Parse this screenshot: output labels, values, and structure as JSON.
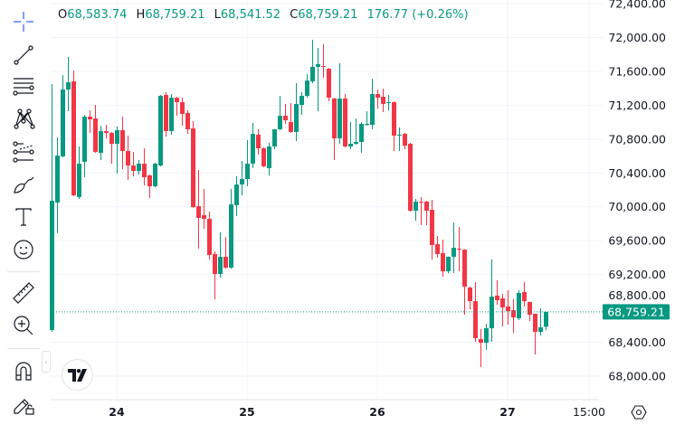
{
  "legend": {
    "open_label": "O",
    "open": "68,583.74",
    "high_label": "H",
    "high": "68,759.21",
    "low_label": "L",
    "low": "68,541.52",
    "close_label": "C",
    "close": "68,759.21",
    "change": "176.77 (+0.26%)"
  },
  "toolbar": {
    "tools": [
      "crosshair-icon",
      "trend-line-icon",
      "fib-retracement-icon",
      "xabcd-pattern-icon",
      "forecast-icon",
      "brush-icon",
      "text-icon",
      "emoji-icon",
      "ruler-icon",
      "zoom-in-icon",
      "magnet-icon",
      "lock-drawings-icon"
    ]
  },
  "time_axis": {
    "labels": [
      {
        "label": "24",
        "t": "24 00"
      },
      {
        "label": "25",
        "t": "25 00"
      },
      {
        "label": "26",
        "t": "26 00"
      },
      {
        "label": "27",
        "t": "27 00"
      },
      {
        "label": "15:00",
        "t": "27 15"
      }
    ]
  },
  "settings_icon": "gear-icon",
  "colors": {
    "up": "#089981",
    "down": "#F23645",
    "grid": "#f0f3fa",
    "text": "#131722"
  },
  "chart_data": {
    "type": "candlestick",
    "title": "",
    "xlabel": "",
    "ylabel": "",
    "ylim": [
      68000,
      72400
    ],
    "y_ticks": [
      "72,400.00",
      "72,000.00",
      "71,600.00",
      "71,200.00",
      "70,800.00",
      "70,400.00",
      "70,000.00",
      "69,600.00",
      "69,200.00",
      "68,800.00",
      "68,400.00",
      "68,000.00"
    ],
    "y_tick_values": [
      72400,
      72000,
      71600,
      71200,
      70800,
      70400,
      70000,
      69600,
      69200,
      68800,
      68400,
      68000
    ],
    "grid": true,
    "last_price": 68759.21,
    "last_price_label": "68,759.21",
    "columns": [
      "t",
      "open",
      "high",
      "low",
      "close"
    ],
    "candles": [
      [
        "23 12",
        68545,
        71450,
        68523,
        70072
      ],
      [
        "23 13",
        70050,
        70820,
        69690,
        70605
      ],
      [
        "23 14",
        70595,
        71556,
        70585,
        71386
      ],
      [
        "23 15",
        71386,
        71770,
        71129,
        71471
      ],
      [
        "23 16",
        71482,
        71610,
        70125,
        70136
      ],
      [
        "23 17",
        70115,
        70713,
        70093,
        70510
      ],
      [
        "23 18",
        70531,
        71087,
        70350,
        71065
      ],
      [
        "23 19",
        71065,
        71140,
        70873,
        71033
      ],
      [
        "23 20",
        71044,
        71204,
        70638,
        70649
      ],
      [
        "23 21",
        70638,
        70958,
        70553,
        70894
      ],
      [
        "23 22",
        70894,
        70969,
        70809,
        70873
      ],
      [
        "23 23",
        70873,
        70884,
        70510,
        70745
      ],
      [
        "24 00",
        70745,
        70948,
        70392,
        70905
      ],
      [
        "24 01",
        70905,
        71065,
        70446,
        70659
      ],
      [
        "24 02",
        70659,
        70841,
        70318,
        70488
      ],
      [
        "24 03",
        70488,
        70649,
        70360,
        70424
      ],
      [
        "24 04",
        70424,
        70553,
        70382,
        70510
      ],
      [
        "24 05",
        70510,
        70691,
        70253,
        70350
      ],
      [
        "24 06",
        70371,
        70382,
        70104,
        70243
      ],
      [
        "24 07",
        70243,
        70520,
        70230,
        70510
      ],
      [
        "24 08",
        70488,
        71321,
        70478,
        71311
      ],
      [
        "24 09",
        71321,
        71354,
        70830,
        70894
      ],
      [
        "24 10",
        70894,
        71332,
        70852,
        71289
      ],
      [
        "24 11",
        71289,
        71300,
        71076,
        71236
      ],
      [
        "24 12",
        71236,
        71290,
        70958,
        71097
      ],
      [
        "24 13",
        71108,
        71140,
        70862,
        70916
      ],
      [
        "24 14",
        70926,
        71012,
        69986,
        69997
      ],
      [
        "24 15",
        70008,
        70435,
        69506,
        69869
      ],
      [
        "24 16",
        69901,
        70211,
        69741,
        69858
      ],
      [
        "24 17",
        69858,
        69944,
        69378,
        69431
      ],
      [
        "24 18",
        69442,
        69474,
        68908,
        69207
      ],
      [
        "24 19",
        69207,
        69698,
        69164,
        69410
      ],
      [
        "24 20",
        69410,
        69645,
        69271,
        69282
      ],
      [
        "24 21",
        69282,
        70211,
        69271,
        70029
      ],
      [
        "24 22",
        70019,
        70360,
        69890,
        70264
      ],
      [
        "24 23",
        70264,
        70542,
        70136,
        70328
      ],
      [
        "25 00",
        70328,
        70787,
        70243,
        70510
      ],
      [
        "25 01",
        70510,
        70990,
        70456,
        70862
      ],
      [
        "25 02",
        70852,
        70916,
        70617,
        70691
      ],
      [
        "25 03",
        70691,
        70702,
        70467,
        70478
      ],
      [
        "25 04",
        70456,
        70755,
        70371,
        70713
      ],
      [
        "25 05",
        70713,
        70920,
        70681,
        70916
      ],
      [
        "25 06",
        70916,
        71311,
        70905,
        71076
      ],
      [
        "25 07",
        71076,
        71215,
        70980,
        71022
      ],
      [
        "25 08",
        71001,
        71225,
        70873,
        70884
      ],
      [
        "25 09",
        70884,
        71460,
        70777,
        71215
      ],
      [
        "25 10",
        71204,
        71354,
        71087,
        71311
      ],
      [
        "25 11",
        71311,
        71567,
        71289,
        71492
      ],
      [
        "25 12",
        71482,
        71973,
        71460,
        71653
      ],
      [
        "25 13",
        71653,
        71877,
        71129,
        71685
      ],
      [
        "25 14",
        71663,
        71920,
        71524,
        71653
      ],
      [
        "25 15",
        71631,
        71640,
        71247,
        71289
      ],
      [
        "25 16",
        71279,
        71285,
        70553,
        70809
      ],
      [
        "25 17",
        70809,
        71695,
        70745,
        71279
      ],
      [
        "25 18",
        71279,
        71332,
        70702,
        70713
      ],
      [
        "25 19",
        70713,
        71001,
        70681,
        70745
      ],
      [
        "25 20",
        70745,
        71044,
        70734,
        70766
      ],
      [
        "25 21",
        70766,
        71001,
        70638,
        70980
      ],
      [
        "25 22",
        70969,
        71129,
        70958,
        70980
      ],
      [
        "25 23",
        70969,
        71514,
        70916,
        71332
      ],
      [
        "26 00",
        71332,
        71386,
        71161,
        71289
      ],
      [
        "26 01",
        71300,
        71396,
        71119,
        71215
      ],
      [
        "26 02",
        71225,
        71321,
        71140,
        71236
      ],
      [
        "26 03",
        71236,
        71247,
        70659,
        70841
      ],
      [
        "26 04",
        70841,
        70937,
        70659,
        70852
      ],
      [
        "26 05",
        70862,
        70873,
        70681,
        70723
      ],
      [
        "26 06",
        70745,
        70755,
        69944,
        69954
      ],
      [
        "26 07",
        69954,
        70093,
        69837,
        70061
      ],
      [
        "26 08",
        70061,
        70115,
        69784,
        70051
      ],
      [
        "26 09",
        70061,
        70072,
        69784,
        69954
      ],
      [
        "26 10",
        69965,
        70083,
        69378,
        69549
      ],
      [
        "26 11",
        69559,
        69655,
        69399,
        69442
      ],
      [
        "26 12",
        69452,
        69613,
        69175,
        69239
      ],
      [
        "26 13",
        69239,
        69415,
        69218,
        69410
      ],
      [
        "26 14",
        69410,
        69816,
        69218,
        69517
      ],
      [
        "26 15",
        69506,
        69762,
        69239,
        69495
      ],
      [
        "26 16",
        69495,
        69500,
        68726,
        69057
      ],
      [
        "26 17",
        69047,
        69057,
        68790,
        68886
      ],
      [
        "26 18",
        68886,
        69111,
        68406,
        68449
      ],
      [
        "26 19",
        68438,
        68555,
        68107,
        68395
      ],
      [
        "26 20",
        68395,
        68619,
        68310,
        68566
      ],
      [
        "26 21",
        68566,
        69378,
        68406,
        68940
      ],
      [
        "26 22",
        68951,
        69132,
        68844,
        68897
      ],
      [
        "26 23",
        68918,
        68972,
        68587,
        68812
      ],
      [
        "27 00",
        68822,
        69015,
        68609,
        68769
      ],
      [
        "27 01",
        68780,
        68908,
        68513,
        68694
      ],
      [
        "27 02",
        68684,
        69015,
        68662,
        68983
      ],
      [
        "27 03",
        68993,
        69111,
        68822,
        68886
      ],
      [
        "27 04",
        68876,
        68880,
        68651,
        68726
      ],
      [
        "27 05",
        68737,
        68740,
        68256,
        68523
      ],
      [
        "27 06",
        68523,
        68801,
        68481,
        68577
      ],
      [
        "27 07",
        68583.74,
        68759.21,
        68541.52,
        68759.21
      ]
    ]
  }
}
